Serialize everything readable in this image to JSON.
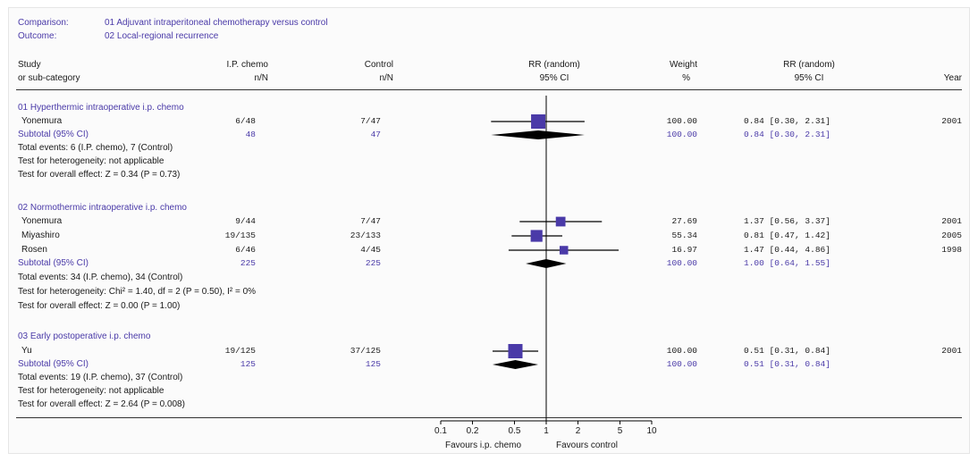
{
  "header": {
    "comparison_label": "Comparison:",
    "comparison_value": "01 Adjuvant intraperitoneal chemotherapy versus control",
    "outcome_label": "Outcome:",
    "outcome_value": "02 Local-regional recurrence"
  },
  "columns": {
    "study_1": "Study",
    "study_2": "or sub-category",
    "ip_1": "I.P. chemo",
    "ip_2": "n/N",
    "control_1": "Control",
    "control_2": "n/N",
    "rr_1": "RR (random)",
    "rr_2": "95% CI",
    "weight_1": "Weight",
    "weight_2": "%",
    "rr2_1": "RR (random)",
    "rr2_2": "95% CI",
    "year": "Year"
  },
  "groups": [
    {
      "title": "01 Hyperthermic intraoperative i.p. chemo",
      "studies": [
        {
          "name": "Yonemura",
          "ip": "6/48",
          "control": "7/47",
          "weight": "100.00",
          "ci": "0.84 [0.30, 2.31]",
          "year": "2001"
        }
      ],
      "subtotal": {
        "label": "Subtotal (95% CI)",
        "ip": "48",
        "control": "47",
        "weight": "100.00",
        "ci": "0.84 [0.30, 2.31]"
      },
      "notes": [
        "Total events: 6 (I.P. chemo), 7 (Control)",
        "Test for heterogeneity: not applicable",
        "Test for overall effect: Z = 0.34 (P = 0.73)"
      ]
    },
    {
      "title": "02 Normothermic intraoperative i.p. chemo",
      "studies": [
        {
          "name": "Yonemura",
          "ip": "9/44",
          "control": "7/47",
          "weight": "27.69",
          "ci": "1.37 [0.56, 3.37]",
          "year": "2001"
        },
        {
          "name": "Miyashiro",
          "ip": "19/135",
          "control": "23/133",
          "weight": "55.34",
          "ci": "0.81 [0.47, 1.42]",
          "year": "2005"
        },
        {
          "name": "Rosen",
          "ip": "6/46",
          "control": "4/45",
          "weight": "16.97",
          "ci": "1.47 [0.44, 4.86]",
          "year": "1998"
        }
      ],
      "subtotal": {
        "label": "Subtotal (95% CI)",
        "ip": "225",
        "control": "225",
        "weight": "100.00",
        "ci": "1.00 [0.64, 1.55]"
      },
      "notes": [
        "Total events: 34 (I.P. chemo), 34 (Control)",
        "Test for heterogeneity: Chi² = 1.40, df = 2 (P = 0.50), I² = 0%",
        "Test for overall effect: Z = 0.00 (P = 1.00)"
      ]
    },
    {
      "title": "03 Early postoperative i.p. chemo",
      "studies": [
        {
          "name": "Yu",
          "ip": "19/125",
          "control": "37/125",
          "weight": "100.00",
          "ci": "0.51 [0.31, 0.84]",
          "year": "2001"
        }
      ],
      "subtotal": {
        "label": "Subtotal (95% CI)",
        "ip": "125",
        "control": "125",
        "weight": "100.00",
        "ci": "0.51 [0.31, 0.84]"
      },
      "notes": [
        "Total events: 19 (I.P. chemo), 37 (Control)",
        "Test for heterogeneity: not applicable",
        "Test for overall effect: Z = 2.64 (P = 0.008)"
      ]
    }
  ],
  "axis": {
    "ticks": [
      "0.1",
      "0.2",
      "0.5",
      "1",
      "2",
      "5",
      "10"
    ],
    "favours_left": "Favours i.p. chemo",
    "favours_right": "Favours control"
  },
  "chart_data": {
    "type": "forest",
    "x_scale": "log",
    "xlim": [
      0.1,
      10
    ],
    "reference_line": 1,
    "colors": {
      "study_box": "#4a3aa8",
      "diamond": "#000000",
      "text_blue": "#4a3aa8"
    },
    "studies": [
      {
        "group": 0,
        "name": "Yonemura",
        "rr": 0.84,
        "lo": 0.3,
        "hi": 2.31,
        "weight": 100.0
      },
      {
        "group": 1,
        "name": "Yonemura",
        "rr": 1.37,
        "lo": 0.56,
        "hi": 3.37,
        "weight": 27.69
      },
      {
        "group": 1,
        "name": "Miyashiro",
        "rr": 0.81,
        "lo": 0.47,
        "hi": 1.42,
        "weight": 55.34
      },
      {
        "group": 1,
        "name": "Rosen",
        "rr": 1.47,
        "lo": 0.44,
        "hi": 4.86,
        "weight": 16.97
      },
      {
        "group": 2,
        "name": "Yu",
        "rr": 0.51,
        "lo": 0.31,
        "hi": 0.84,
        "weight": 100.0
      }
    ],
    "subtotals": [
      {
        "group": 0,
        "rr": 0.84,
        "lo": 0.3,
        "hi": 2.31
      },
      {
        "group": 1,
        "rr": 1.0,
        "lo": 0.64,
        "hi": 1.55
      },
      {
        "group": 2,
        "rr": 0.51,
        "lo": 0.31,
        "hi": 0.84
      }
    ]
  }
}
